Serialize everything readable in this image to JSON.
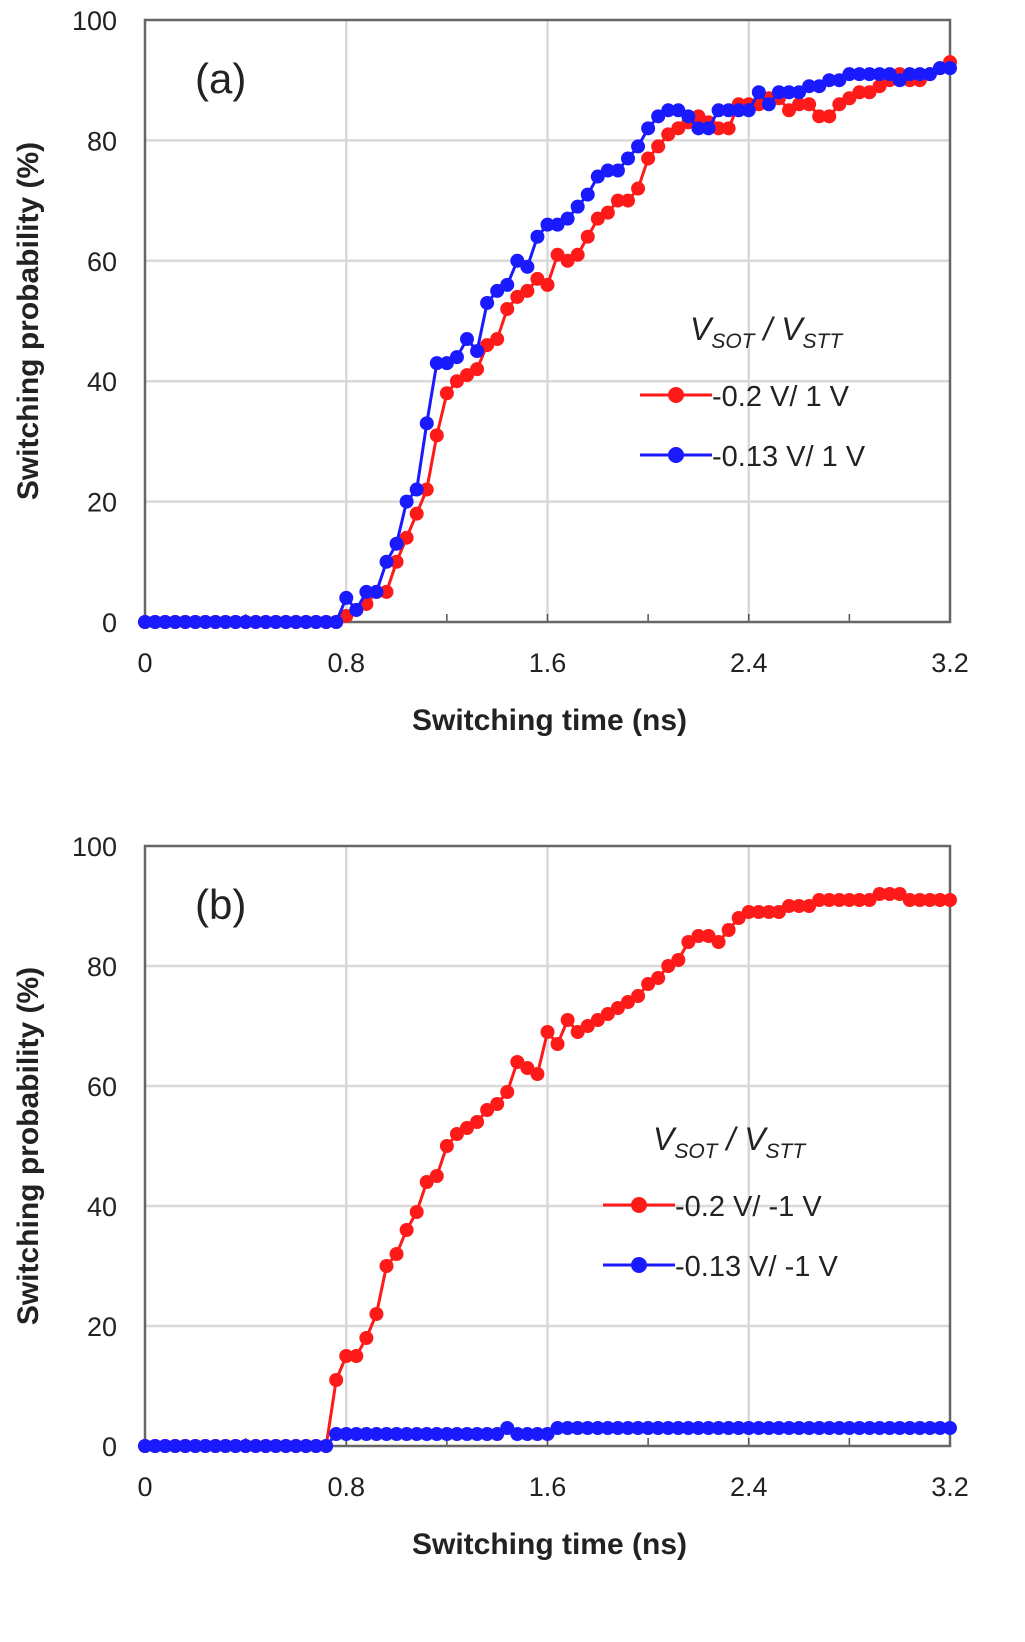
{
  "chart_data": [
    {
      "type": "line",
      "panel_label": "(a)",
      "xlabel": "Switching time (ns)",
      "ylabel": "Switching probability (%)",
      "xlim": [
        0,
        3.2
      ],
      "ylim": [
        0,
        100
      ],
      "xticks": [
        "0",
        "0.8",
        "1.6",
        "2.4",
        "3.2"
      ],
      "yticks": [
        "0",
        "20",
        "40",
        "60",
        "80",
        "100"
      ],
      "grid": true,
      "legend_title": {
        "v1": "V",
        "s1": "SOT",
        "sep": " / ",
        "v2": "V",
        "s2": "STT"
      },
      "legend_position": "center-right",
      "x": [
        0,
        0.04,
        0.08,
        0.12,
        0.16,
        0.2,
        0.24,
        0.28,
        0.32,
        0.36,
        0.4,
        0.44,
        0.48,
        0.52,
        0.56,
        0.6,
        0.64,
        0.68,
        0.72,
        0.76,
        0.8,
        0.84,
        0.88,
        0.92,
        0.96,
        1.0,
        1.04,
        1.08,
        1.12,
        1.16,
        1.2,
        1.24,
        1.28,
        1.32,
        1.36,
        1.4,
        1.44,
        1.48,
        1.52,
        1.56,
        1.6,
        1.64,
        1.68,
        1.72,
        1.76,
        1.8,
        1.84,
        1.88,
        1.92,
        1.96,
        2.0,
        2.04,
        2.08,
        2.12,
        2.16,
        2.2,
        2.24,
        2.28,
        2.32,
        2.36,
        2.4,
        2.44,
        2.48,
        2.52,
        2.56,
        2.6,
        2.64,
        2.68,
        2.72,
        2.76,
        2.8,
        2.84,
        2.88,
        2.92,
        2.96,
        3.0,
        3.04,
        3.08,
        3.12,
        3.16,
        3.2
      ],
      "series": [
        {
          "name": "-0.2 V/ 1 V",
          "color": "#ff1a1a",
          "values": [
            0,
            0,
            0,
            0,
            0,
            0,
            0,
            0,
            0,
            0,
            0,
            0,
            0,
            0,
            0,
            0,
            0,
            0,
            0,
            0,
            1,
            2,
            3,
            5,
            5,
            10,
            14,
            18,
            22,
            31,
            38,
            40,
            41,
            42,
            46,
            47,
            52,
            54,
            55,
            57,
            56,
            61,
            60,
            61,
            64,
            67,
            68,
            70,
            70,
            72,
            77,
            79,
            81,
            82,
            83,
            84,
            83,
            82,
            82,
            86,
            86,
            86,
            87,
            87,
            85,
            86,
            86,
            84,
            84,
            86,
            87,
            88,
            88,
            89,
            90,
            91,
            90,
            90,
            91,
            92,
            93
          ]
        },
        {
          "name": "-0.13 V/ 1 V",
          "color": "#1a1aff",
          "values": [
            0,
            0,
            0,
            0,
            0,
            0,
            0,
            0,
            0,
            0,
            0,
            0,
            0,
            0,
            0,
            0,
            0,
            0,
            0,
            0,
            4,
            2,
            5,
            5,
            10,
            13,
            20,
            22,
            33,
            43,
            43,
            44,
            47,
            45,
            53,
            55,
            56,
            60,
            59,
            64,
            66,
            66,
            67,
            69,
            71,
            74,
            75,
            75,
            77,
            79,
            82,
            84,
            85,
            85,
            84,
            82,
            82,
            85,
            85,
            85,
            85,
            88,
            86,
            88,
            88,
            88,
            89,
            89,
            90,
            90,
            91,
            91,
            91,
            91,
            91,
            90,
            91,
            91,
            91,
            92,
            92
          ]
        }
      ]
    },
    {
      "type": "line",
      "panel_label": "(b)",
      "xlabel": "Switching time (ns)",
      "ylabel": "Switching probability (%)",
      "xlim": [
        0,
        3.2
      ],
      "ylim": [
        0,
        100
      ],
      "xticks": [
        "0",
        "0.8",
        "1.6",
        "2.4",
        "3.2"
      ],
      "yticks": [
        "0",
        "20",
        "40",
        "60",
        "80",
        "100"
      ],
      "grid": true,
      "legend_title": {
        "v1": "V",
        "s1": "SOT",
        "sep": " / ",
        "v2": "V",
        "s2": "STT"
      },
      "legend_position": "center-right",
      "x": [
        0,
        0.04,
        0.08,
        0.12,
        0.16,
        0.2,
        0.24,
        0.28,
        0.32,
        0.36,
        0.4,
        0.44,
        0.48,
        0.52,
        0.56,
        0.6,
        0.64,
        0.68,
        0.72,
        0.76,
        0.8,
        0.84,
        0.88,
        0.92,
        0.96,
        1.0,
        1.04,
        1.08,
        1.12,
        1.16,
        1.2,
        1.24,
        1.28,
        1.32,
        1.36,
        1.4,
        1.44,
        1.48,
        1.52,
        1.56,
        1.6,
        1.64,
        1.68,
        1.72,
        1.76,
        1.8,
        1.84,
        1.88,
        1.92,
        1.96,
        2.0,
        2.04,
        2.08,
        2.12,
        2.16,
        2.2,
        2.24,
        2.28,
        2.32,
        2.36,
        2.4,
        2.44,
        2.48,
        2.52,
        2.56,
        2.6,
        2.64,
        2.68,
        2.72,
        2.76,
        2.8,
        2.84,
        2.88,
        2.92,
        2.96,
        3.0,
        3.04,
        3.08,
        3.12,
        3.16,
        3.2
      ],
      "series": [
        {
          "name": "-0.2 V/ -1 V",
          "color": "#ff1a1a",
          "values": [
            0,
            0,
            0,
            0,
            0,
            0,
            0,
            0,
            0,
            0,
            0,
            0,
            0,
            0,
            0,
            0,
            0,
            0,
            0,
            11,
            15,
            15,
            18,
            22,
            30,
            32,
            36,
            39,
            44,
            45,
            50,
            52,
            53,
            54,
            56,
            57,
            59,
            64,
            63,
            62,
            69,
            67,
            71,
            69,
            70,
            71,
            72,
            73,
            74,
            75,
            77,
            78,
            80,
            81,
            84,
            85,
            85,
            84,
            86,
            88,
            89,
            89,
            89,
            89,
            90,
            90,
            90,
            91,
            91,
            91,
            91,
            91,
            91,
            92,
            92,
            92,
            91,
            91,
            91,
            91,
            91
          ]
        },
        {
          "name": "-0.13 V/ -1 V",
          "color": "#1a1aff",
          "values": [
            0,
            0,
            0,
            0,
            0,
            0,
            0,
            0,
            0,
            0,
            0,
            0,
            0,
            0,
            0,
            0,
            0,
            0,
            0,
            2,
            2,
            2,
            2,
            2,
            2,
            2,
            2,
            2,
            2,
            2,
            2,
            2,
            2,
            2,
            2,
            2,
            3,
            2,
            2,
            2,
            2,
            3,
            3,
            3,
            3,
            3,
            3,
            3,
            3,
            3,
            3,
            3,
            3,
            3,
            3,
            3,
            3,
            3,
            3,
            3,
            3,
            3,
            3,
            3,
            3,
            3,
            3,
            3,
            3,
            3,
            3,
            3,
            3,
            3,
            3,
            3,
            3,
            3,
            3,
            3,
            3
          ]
        }
      ]
    }
  ]
}
